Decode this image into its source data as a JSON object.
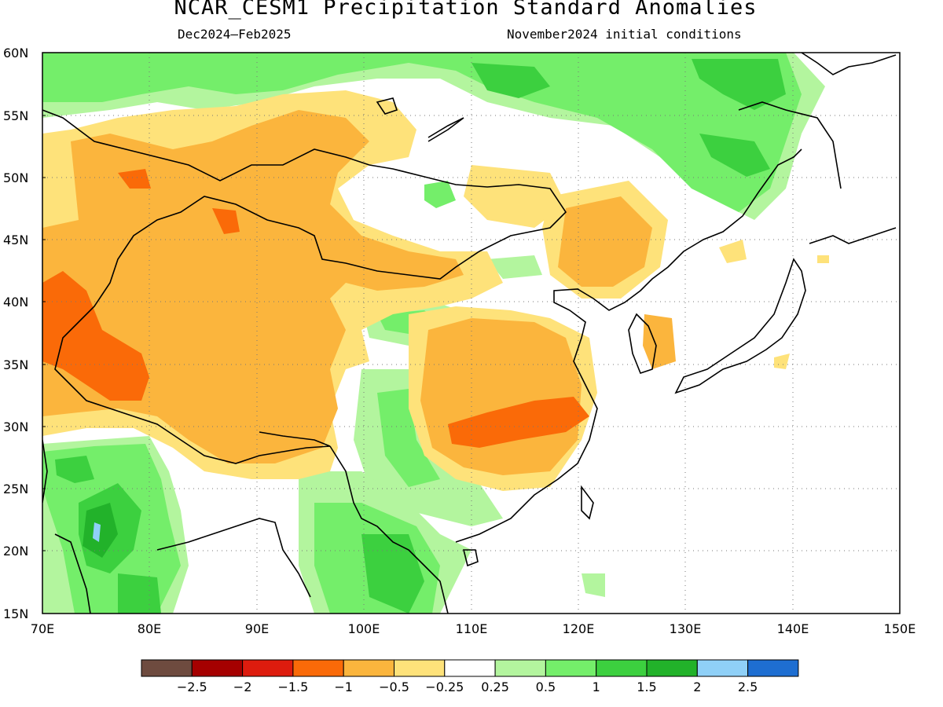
{
  "title": "NCAR_CESM1 Precipitation Standard Anomalies",
  "subtitle_left": "Dec2024–Feb2025",
  "subtitle_right": "November2024 initial conditions",
  "lat_labels": [
    "60N",
    "55N",
    "50N",
    "45N",
    "40N",
    "35N",
    "30N",
    "25N",
    "20N",
    "15N"
  ],
  "lon_labels": [
    "70E",
    "80E",
    "90E",
    "100E",
    "110E",
    "120E",
    "130E",
    "140E",
    "150E"
  ],
  "colorbar": {
    "colors": [
      "#6e4b3f",
      "#a50000",
      "#dd1c0e",
      "#fa6a08",
      "#fbb53d",
      "#fee27a",
      "#ffffff",
      "#b3f59e",
      "#74ee6a",
      "#3cd03f",
      "#22b22a",
      "#8fd0f7",
      "#1e6ed1"
    ],
    "labels": [
      "−2.5",
      "−2",
      "−1.5",
      "−1",
      "−0.5",
      "−0.25",
      "0.25",
      "0.5",
      "1",
      "1.5",
      "2",
      "2.5"
    ]
  },
  "chart_data": {
    "type": "heatmap",
    "title": "NCAR_CESM1 Precipitation Standard Anomalies",
    "xlim": [
      70,
      150
    ],
    "ylim": [
      15,
      60
    ],
    "x_ticks": [
      70,
      80,
      90,
      100,
      110,
      120,
      130,
      140,
      150
    ],
    "y_ticks": [
      15,
      20,
      25,
      30,
      35,
      40,
      45,
      50,
      55,
      60
    ],
    "grid": true,
    "color_levels": [
      -2.5,
      -2,
      -1.5,
      -1,
      -0.5,
      -0.25,
      0.25,
      0.5,
      1,
      1.5,
      2,
      2.5
    ]
  }
}
